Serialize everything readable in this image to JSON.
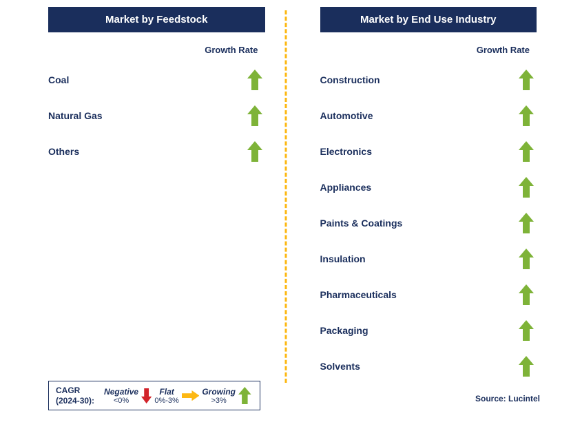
{
  "colors": {
    "header_bg": "#1a2e5c",
    "header_fg": "#ffffff",
    "divider": "#fdb813",
    "text": "#1a2e5c",
    "arrow_up": "#7eb338",
    "arrow_right": "#fdb813",
    "arrow_down": "#d2232a"
  },
  "left": {
    "title": "Market by Feedstock",
    "growth_label": "Growth Rate",
    "items": [
      {
        "label": "Coal",
        "growth": "up"
      },
      {
        "label": "Natural Gas",
        "growth": "up"
      },
      {
        "label": "Others",
        "growth": "up"
      }
    ]
  },
  "right": {
    "title": "Market by End Use Industry",
    "growth_label": "Growth Rate",
    "items": [
      {
        "label": "Construction",
        "growth": "up"
      },
      {
        "label": "Automotive",
        "growth": "up"
      },
      {
        "label": "Electronics",
        "growth": "up"
      },
      {
        "label": "Appliances",
        "growth": "up"
      },
      {
        "label": "Paints & Coatings",
        "growth": "up"
      },
      {
        "label": "Insulation",
        "growth": "up"
      },
      {
        "label": "Pharmaceuticals",
        "growth": "up"
      },
      {
        "label": "Packaging",
        "growth": "up"
      },
      {
        "label": "Solvents",
        "growth": "up"
      }
    ]
  },
  "legend": {
    "title_l1": "CAGR",
    "title_l2": "(2024-30):",
    "items": [
      {
        "label": "Negative",
        "range": "<0%",
        "arrow": "down"
      },
      {
        "label": "Flat",
        "range": "0%-3%",
        "arrow": "right"
      },
      {
        "label": "Growing",
        "range": ">3%",
        "arrow": "up"
      }
    ]
  },
  "source": "Source: Lucintel",
  "arrow_svg": {
    "up_width": 22,
    "up_height": 30,
    "right_width": 30,
    "right_height": 18,
    "down_width": 18,
    "down_height": 26,
    "legend_scale": 0.85
  }
}
